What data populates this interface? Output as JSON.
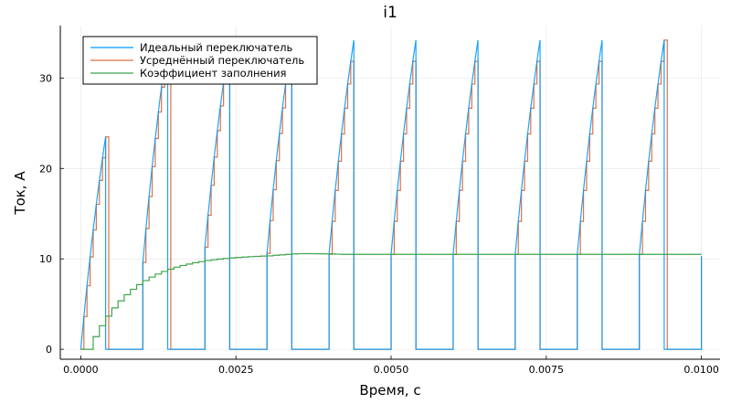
{
  "chart_data": {
    "type": "line",
    "title": "i1",
    "xlabel": "Время, с",
    "ylabel": "Ток, А",
    "xlim": [
      -0.00033,
      0.0103
    ],
    "ylim": [
      -1.1,
      35.8
    ],
    "grid": true,
    "legend_position": "top-left",
    "x_ticks": [
      0,
      0.0025,
      0.005,
      0.0075,
      0.01
    ],
    "x_tick_labels": [
      "0.0000",
      "0.0025",
      "0.0050",
      "0.0075",
      "0.0100"
    ],
    "y_ticks": [
      0,
      10,
      20,
      30
    ],
    "y_tick_labels": [
      "0",
      "10",
      "20",
      "30"
    ],
    "colors": {
      "ideal": "#009AFA",
      "averaged": "#E26F46",
      "duty": "#3DA44D"
    },
    "series": [
      {
        "name": "Идеальный переключатель",
        "key": "ideal",
        "period": 0.001,
        "on_time": 0.0004,
        "period_start_values": [
          0,
          9.6,
          11.3,
          10.6,
          10.5,
          10.5,
          10.5,
          10.5,
          10.5,
          10.5
        ],
        "period_peak_values": [
          23.5,
          34.0,
          34.2,
          34.2,
          34.2,
          34.2,
          34.2,
          34.2,
          34.2,
          34.2
        ],
        "final_point": [
          0.01,
          10.3
        ]
      },
      {
        "name": "Усреднённый переключатель",
        "key": "averaged",
        "sample_period": 5e-05,
        "description_of_values": "zero-order hold of ideal switch current"
      },
      {
        "name": "Коэффициент заполнения",
        "key": "duty",
        "step": 0.0001,
        "values": [
          0,
          0,
          1.4,
          2.61,
          3.66,
          4.57,
          5.36,
          6.04,
          6.64,
          7.15,
          7.6,
          7.98,
          8.32,
          8.61,
          8.86,
          9.08,
          9.27,
          9.43,
          9.58,
          9.7,
          9.81,
          9.9,
          9.98,
          10.05,
          10.11,
          10.16,
          10.2,
          10.24,
          10.28,
          10.31,
          10.33,
          10.4,
          10.45,
          10.5,
          10.55,
          10.57,
          10.58,
          10.57,
          10.56,
          10.55,
          10.55,
          10.52,
          10.5
        ],
        "final_value": 10.5
      }
    ]
  }
}
